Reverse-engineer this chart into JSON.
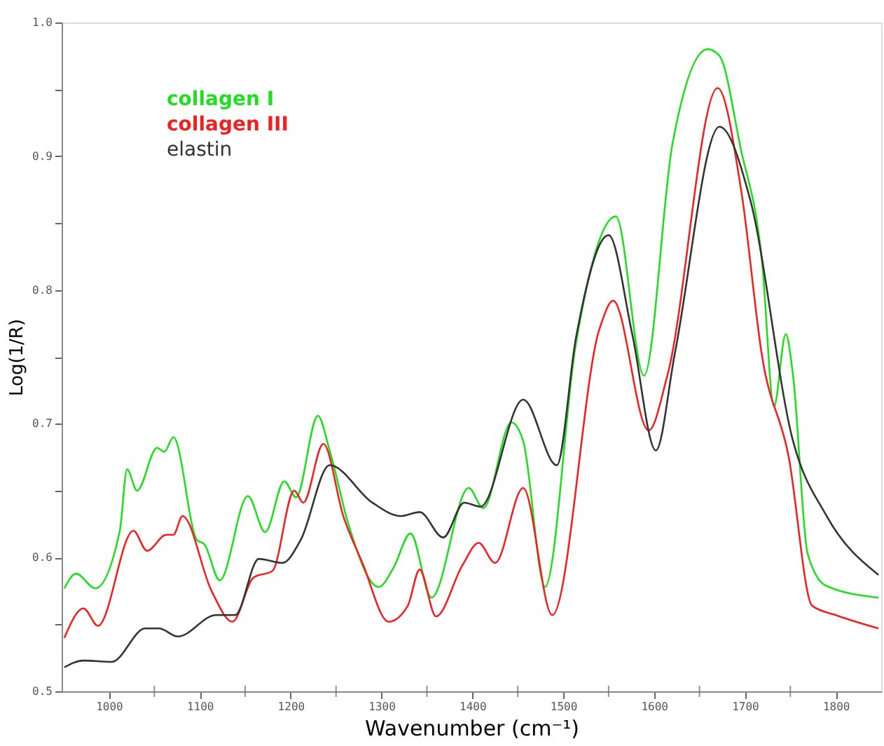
{
  "chart_data": {
    "type": "line",
    "xlabel": "Wavenumber (cm⁻¹)",
    "ylabel": "Log(1/R)",
    "xlim": [
      948,
      1850
    ],
    "xticks": [
      1000,
      {
        "value": 1050,
        "label": null
      },
      1100,
      {
        "value": 1150,
        "label": null
      },
      1200,
      {
        "value": 1250,
        "label": null
      },
      1300,
      {
        "value": 1350,
        "label": null
      },
      1400,
      {
        "value": 1450,
        "label": null
      },
      1500,
      {
        "value": 1550,
        "label": null
      },
      1600,
      {
        "value": 1650,
        "label": null
      },
      1700,
      {
        "value": 1750,
        "label": null
      },
      1800
    ],
    "ylim": [
      0.5,
      1.0
    ],
    "yticks": [
      0.5,
      {
        "value": 0.55,
        "label": null
      },
      0.6,
      {
        "value": 0.65,
        "label": null
      },
      0.7,
      {
        "value": 0.75,
        "label": null
      },
      0.8,
      {
        "value": 0.85,
        "label": null
      },
      0.9,
      {
        "value": 0.95,
        "label": null
      },
      {
        "value": 1.0,
        "label": "1.0"
      }
    ],
    "grid": false,
    "legend": "top left",
    "marker": "none",
    "line_style": "solid",
    "series": [
      {
        "name": "collagen I",
        "color": "#22dd22",
        "x": [
          951,
          964,
          985,
          1012,
          1020,
          1031,
          1053,
          1061,
          1071,
          1097,
          1105,
          1122,
          1153,
          1172,
          1193,
          1206,
          1230,
          1243,
          1264,
          1297,
          1313,
          1332,
          1355,
          1396,
          1412,
          1443,
          1456,
          1480,
          1514,
          1558,
          1589,
          1620,
          1659,
          1672,
          1695,
          1719,
          1732,
          1745,
          1753,
          1769,
          1789,
          1847
        ],
        "values": [
          0.577,
          0.588,
          0.577,
          0.62,
          0.666,
          0.65,
          0.682,
          0.679,
          0.69,
          0.613,
          0.61,
          0.583,
          0.646,
          0.619,
          0.657,
          0.645,
          0.706,
          0.68,
          0.624,
          0.578,
          0.592,
          0.618,
          0.57,
          0.652,
          0.637,
          0.701,
          0.687,
          0.578,
          0.76,
          0.855,
          0.736,
          0.908,
          0.98,
          0.975,
          0.907,
          0.82,
          0.713,
          0.767,
          0.736,
          0.603,
          0.579,
          0.57
        ]
      },
      {
        "name": "collagen III",
        "color": "#ee2222",
        "x": [
          951,
          972,
          988,
          1027,
          1042,
          1063,
          1071,
          1081,
          1113,
          1136,
          1159,
          1180,
          1204,
          1214,
          1236,
          1258,
          1279,
          1308,
          1329,
          1342,
          1360,
          1389,
          1407,
          1425,
          1456,
          1488,
          1540,
          1555,
          1594,
          1615,
          1670,
          1696,
          1719,
          1748,
          1774,
          1800,
          1847
        ],
        "values": [
          0.54,
          0.562,
          0.549,
          0.62,
          0.605,
          0.617,
          0.617,
          0.631,
          0.575,
          0.552,
          0.585,
          0.59,
          0.65,
          0.641,
          0.685,
          0.631,
          0.596,
          0.552,
          0.564,
          0.591,
          0.556,
          0.594,
          0.611,
          0.596,
          0.652,
          0.557,
          0.771,
          0.792,
          0.695,
          0.737,
          0.951,
          0.874,
          0.75,
          0.676,
          0.564,
          0.557,
          0.547
        ]
      },
      {
        "name": "elastin",
        "color": "#333333",
        "x": [
          951,
          972,
          1003,
          1040,
          1055,
          1076,
          1118,
          1139,
          1165,
          1191,
          1211,
          1243,
          1290,
          1321,
          1342,
          1368,
          1391,
          1409,
          1456,
          1493,
          1514,
          1550,
          1576,
          1602,
          1623,
          1672,
          1706,
          1753,
          1790,
          1847
        ],
        "values": [
          0.518,
          0.523,
          0.522,
          0.547,
          0.547,
          0.541,
          0.557,
          0.557,
          0.599,
          0.596,
          0.613,
          0.669,
          0.641,
          0.631,
          0.634,
          0.615,
          0.641,
          0.638,
          0.718,
          0.669,
          0.764,
          0.841,
          0.767,
          0.68,
          0.753,
          0.922,
          0.867,
          0.687,
          0.631,
          0.587
        ]
      }
    ]
  }
}
